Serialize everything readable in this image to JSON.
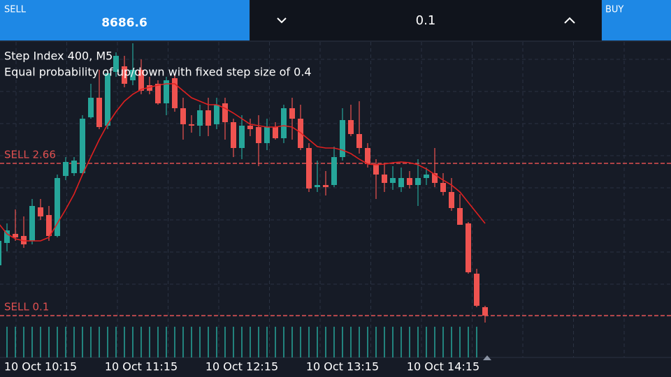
{
  "header": {
    "sell_label": "SELL",
    "sell_price": "8686.6",
    "lot": "0.1",
    "buy_label": "BUY"
  },
  "chart_data": {
    "type": "candlestick",
    "title": "Step Index 400, M5",
    "subtitle": "Equal probability of up/down with fixed step size of 0.4",
    "up_color": "#26a69a",
    "down_color": "#ef5350",
    "ylim": [
      25,
      480
    ],
    "candles": [
      [
        160,
        210,
        155,
        195
      ],
      [
        192,
        220,
        180,
        210
      ],
      [
        205,
        240,
        195,
        200
      ],
      [
        202,
        230,
        185,
        190
      ],
      [
        195,
        255,
        190,
        245
      ],
      [
        243,
        255,
        225,
        230
      ],
      [
        232,
        245,
        195,
        202
      ],
      [
        202,
        290,
        200,
        285
      ],
      [
        288,
        315,
        282,
        308
      ],
      [
        292,
        315,
        288,
        310
      ],
      [
        292,
        375,
        290,
        370
      ],
      [
        372,
        420,
        370,
        400
      ],
      [
        400,
        440,
        355,
        358
      ],
      [
        360,
        440,
        355,
        435
      ],
      [
        437,
        465,
        430,
        460
      ],
      [
        445,
        460,
        415,
        420
      ],
      [
        425,
        478,
        418,
        440
      ],
      [
        440,
        455,
        405,
        410
      ],
      [
        418,
        430,
        405,
        410
      ],
      [
        420,
        425,
        390,
        392
      ],
      [
        392,
        430,
        375,
        425
      ],
      [
        428,
        432,
        380,
        385
      ],
      [
        385,
        400,
        340,
        362
      ],
      [
        362,
        375,
        350,
        360
      ],
      [
        360,
        390,
        345,
        382
      ],
      [
        382,
        400,
        345,
        360
      ],
      [
        362,
        400,
        355,
        390
      ],
      [
        392,
        400,
        340,
        365
      ],
      [
        365,
        370,
        315,
        328
      ],
      [
        328,
        375,
        312,
        360
      ],
      [
        360,
        370,
        345,
        355
      ],
      [
        358,
        375,
        302,
        335
      ],
      [
        335,
        370,
        325,
        358
      ],
      [
        358,
        365,
        340,
        342
      ],
      [
        342,
        390,
        335,
        385
      ],
      [
        385,
        400,
        340,
        370
      ],
      [
        370,
        390,
        325,
        328
      ],
      [
        328,
        335,
        265,
        270
      ],
      [
        272,
        310,
        265,
        275
      ],
      [
        275,
        295,
        260,
        272
      ],
      [
        275,
        330,
        272,
        315
      ],
      [
        315,
        385,
        310,
        368
      ],
      [
        368,
        390,
        345,
        348
      ],
      [
        348,
        395,
        320,
        328
      ],
      [
        328,
        335,
        300,
        305
      ],
      [
        305,
        312,
        255,
        290
      ],
      [
        290,
        305,
        265,
        278
      ],
      [
        278,
        302,
        268,
        285
      ],
      [
        272,
        300,
        265,
        285
      ],
      [
        285,
        295,
        270,
        275
      ],
      [
        275,
        312,
        245,
        285
      ],
      [
        285,
        300,
        275,
        290
      ],
      [
        292,
        328,
        272,
        278
      ],
      [
        278,
        292,
        260,
        265
      ],
      [
        265,
        285,
        238,
        242
      ],
      [
        242,
        262,
        218,
        218
      ],
      [
        220,
        222,
        148,
        150
      ],
      [
        148,
        155,
        100,
        102
      ],
      [
        100,
        102,
        78,
        88
      ]
    ],
    "ma": {
      "color": "#e02020",
      "values": [
        220,
        205,
        198,
        195,
        195,
        195,
        200,
        220,
        240,
        262,
        290,
        315,
        340,
        362,
        380,
        395,
        405,
        412,
        415,
        418,
        420,
        420,
        410,
        400,
        395,
        390,
        390,
        385,
        378,
        370,
        362,
        360,
        358,
        358,
        360,
        358,
        350,
        340,
        330,
        328,
        328,
        325,
        320,
        312,
        305,
        304,
        305,
        307,
        308,
        307,
        304,
        298,
        290,
        282,
        275,
        265,
        250,
        235,
        220
      ]
    },
    "levels": [
      {
        "label": "SELL 2.66",
        "value": 306
      },
      {
        "label": "SELL 0.1",
        "value": 88
      }
    ],
    "xticks": [
      {
        "value": 5,
        "label": "10 Oct 10:15"
      },
      {
        "value": 17,
        "label": "10 Oct 11:15"
      },
      {
        "value": 29,
        "label": "10 Oct 12:15"
      },
      {
        "value": 41,
        "label": "10 Oct 13:15"
      },
      {
        "value": 53,
        "label": "10 Oct 14:15"
      }
    ]
  }
}
